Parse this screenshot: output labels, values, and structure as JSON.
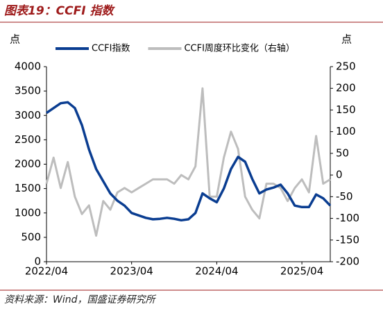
{
  "chart_data": {
    "type": "line",
    "title": "图表19：CCFI 指数",
    "source": "资料来源：Wind，国盛证券研究所",
    "y_label": "点",
    "y2_label": "点",
    "categories": [
      "2022/04",
      null,
      null,
      null,
      null,
      null,
      null,
      null,
      null,
      null,
      null,
      null,
      "2023/04",
      null,
      null,
      null,
      null,
      null,
      null,
      null,
      null,
      null,
      null,
      null,
      "2024/04",
      null,
      null,
      null,
      null,
      null,
      null,
      null,
      null,
      null,
      null,
      null,
      "2025/04",
      null,
      null,
      null,
      null
    ],
    "series": [
      {
        "name": "CCFI指数",
        "color": "#0a3d91",
        "values": [
          3050,
          3150,
          3250,
          3270,
          3150,
          2800,
          2300,
          1900,
          1650,
          1400,
          1250,
          1150,
          1000,
          950,
          900,
          870,
          880,
          900,
          880,
          850,
          870,
          1000,
          1400,
          1300,
          1220,
          1500,
          1900,
          2150,
          2050,
          1700,
          1400,
          1480,
          1520,
          1580,
          1400,
          1150,
          1120,
          1120,
          1380,
          1300,
          1150
        ]
      },
      {
        "name": "CCFI周度环比变化（右轴）",
        "color": "#bdbdbd",
        "axis": "y2",
        "values": [
          -20,
          40,
          -30,
          30,
          -50,
          -90,
          -70,
          -140,
          -60,
          -80,
          -40,
          -30,
          -40,
          -30,
          -20,
          -10,
          -10,
          -10,
          -20,
          0,
          -10,
          20,
          200,
          -50,
          -50,
          40,
          100,
          60,
          -50,
          -80,
          -100,
          -20,
          -20,
          -30,
          -60,
          -30,
          -10,
          -40,
          90,
          -20,
          -10
        ]
      }
    ],
    "ylim": [
      0,
      4000
    ],
    "yticks": [
      0,
      500,
      1000,
      1500,
      2000,
      2500,
      3000,
      3500,
      4000
    ],
    "y2lim": [
      -200,
      250
    ],
    "y2ticks": [
      -200,
      -150,
      -100,
      -50,
      0,
      50,
      100,
      150,
      200,
      250
    ]
  }
}
